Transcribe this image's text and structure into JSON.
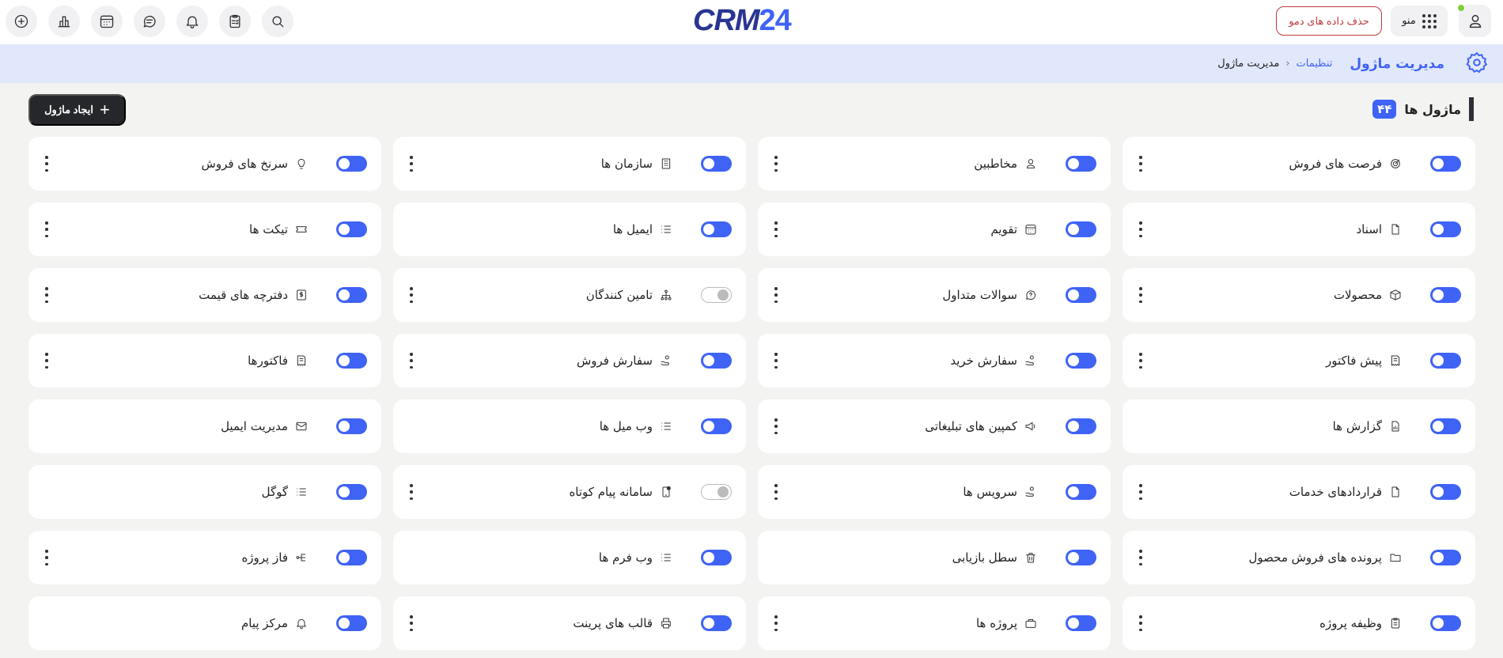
{
  "topbar": {
    "left_icons": [
      "plus-circle-icon",
      "chart-bar-icon",
      "calendar-icon",
      "chat-icon",
      "bell-icon",
      "clipboard-check-icon",
      "search-icon"
    ],
    "logo": {
      "part1": "CRM",
      "part2": "24"
    },
    "delete_demo_label": "حذف داده های دمو",
    "menu_label": "منو",
    "accent": "#3f63f5",
    "danger": "#c0393b",
    "online_status_color": "#7ccf3a"
  },
  "header": {
    "title": "مدیریت ماژول",
    "breadcrumb": [
      {
        "label": "تنظیمات"
      },
      {
        "label": "مدیریت ماژول"
      }
    ]
  },
  "section": {
    "title": "ماژول ها",
    "count": "۴۴",
    "create_label": "ایجاد ماژول"
  },
  "modules": [
    {
      "label": "فرصت های فروش",
      "icon": "target",
      "enabled": true,
      "menu": true
    },
    {
      "label": "مخاطبین",
      "icon": "user",
      "enabled": true,
      "menu": true
    },
    {
      "label": "سازمان ها",
      "icon": "building",
      "enabled": true,
      "menu": true
    },
    {
      "label": "سرنخ های فروش",
      "icon": "bulb",
      "enabled": true,
      "menu": true
    },
    {
      "label": "اسناد",
      "icon": "file",
      "enabled": true,
      "menu": true
    },
    {
      "label": "تقویم",
      "icon": "calendar",
      "enabled": true,
      "menu": true
    },
    {
      "label": "ایمیل ها",
      "icon": "list",
      "enabled": true,
      "menu": false
    },
    {
      "label": "تیکت ها",
      "icon": "ticket",
      "enabled": true,
      "menu": true
    },
    {
      "label": "محصولات",
      "icon": "box",
      "enabled": true,
      "menu": true
    },
    {
      "label": "سوالات متداول",
      "icon": "chat-question",
      "enabled": true,
      "menu": true
    },
    {
      "label": "تامین کنندگان",
      "icon": "sitemap",
      "enabled": false,
      "menu": true
    },
    {
      "label": "دفترچه های قیمت",
      "icon": "price-doc",
      "enabled": true,
      "menu": true
    },
    {
      "label": "پیش فاکتور",
      "icon": "invoice",
      "enabled": true,
      "menu": true
    },
    {
      "label": "سفارش خرید",
      "icon": "hand-coin",
      "enabled": true,
      "menu": true
    },
    {
      "label": "سفارش فروش",
      "icon": "hand-coin",
      "enabled": true,
      "menu": true
    },
    {
      "label": "فاکتورها",
      "icon": "invoice",
      "enabled": true,
      "menu": true
    },
    {
      "label": "گزارش ها",
      "icon": "report",
      "enabled": true,
      "menu": false
    },
    {
      "label": "کمپین های تبلیغاتی",
      "icon": "megaphone",
      "enabled": true,
      "menu": true
    },
    {
      "label": "وب میل ها",
      "icon": "list",
      "enabled": true,
      "menu": false
    },
    {
      "label": "مدیریت ایمیل",
      "icon": "mail",
      "enabled": true,
      "menu": false
    },
    {
      "label": "قراردادهای خدمات",
      "icon": "file",
      "enabled": true,
      "menu": true
    },
    {
      "label": "سرویس ها",
      "icon": "hand-coin",
      "enabled": true,
      "menu": true
    },
    {
      "label": "سامانه پیام کوتاه",
      "icon": "phone-message",
      "enabled": false,
      "menu": true
    },
    {
      "label": "گوگل",
      "icon": "list",
      "enabled": true,
      "menu": false
    },
    {
      "label": "پرونده های فروش محصول",
      "icon": "folder",
      "enabled": true,
      "menu": true
    },
    {
      "label": "سطل بازیابی",
      "icon": "trash",
      "enabled": true,
      "menu": false
    },
    {
      "label": "وب فرم ها",
      "icon": "list",
      "enabled": true,
      "menu": false
    },
    {
      "label": "فاز پروژه",
      "icon": "flow",
      "enabled": true,
      "menu": true
    },
    {
      "label": "وظیفه پروژه",
      "icon": "clipboard",
      "enabled": true,
      "menu": true
    },
    {
      "label": "پروژه ها",
      "icon": "briefcase",
      "enabled": true,
      "menu": true
    },
    {
      "label": "قالب های پرینت",
      "icon": "printer",
      "enabled": true,
      "menu": true
    },
    {
      "label": "مرکز پیام",
      "icon": "bell",
      "enabled": true,
      "menu": false
    }
  ]
}
